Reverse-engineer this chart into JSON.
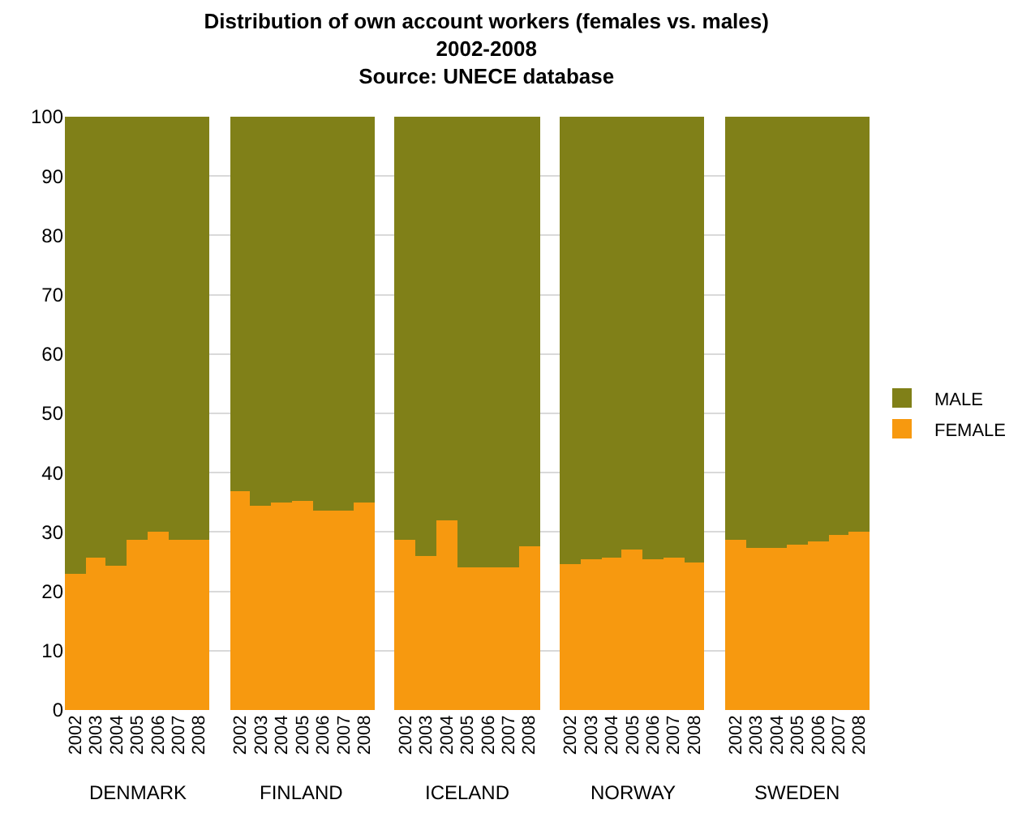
{
  "chart_data": {
    "type": "bar",
    "stacked": true,
    "title": "Distribution of own account workers (females vs. males)\n2002-2008\nSource: UNECE database",
    "categories": [
      "2002",
      "2003",
      "2004",
      "2005",
      "2006",
      "2007",
      "2008",
      null,
      "2002",
      "2003",
      "2004",
      "2005",
      "2006",
      "2007",
      "2008",
      null,
      "2002",
      "2003",
      "2004",
      "2005",
      "2006",
      "2007",
      "2008",
      null,
      "2002",
      "2003",
      "2004",
      "2005",
      "2006",
      "2007",
      "2008",
      null,
      "2002",
      "2003",
      "2004",
      "2005",
      "2006",
      "2007",
      "2008"
    ],
    "series": [
      {
        "name": "FEMALE",
        "color": "#f7990f",
        "values": [
          23.0,
          25.7,
          24.4,
          28.7,
          30.0,
          28.7,
          28.7,
          null,
          37.0,
          34.3,
          35.0,
          35.3,
          33.6,
          33.6,
          35.0,
          null,
          28.6,
          26.0,
          32.0,
          24.1,
          24.1,
          24.1,
          27.7,
          null,
          24.7,
          25.4,
          25.7,
          27.0,
          25.4,
          25.7,
          25.0,
          null,
          28.6,
          27.4,
          27.4,
          27.9,
          28.3,
          29.4,
          30.0
        ]
      },
      {
        "name": "MALE",
        "color": "#808018",
        "values": [
          77.0,
          74.3,
          75.6,
          71.3,
          70.0,
          71.3,
          71.3,
          null,
          63.0,
          65.7,
          65.0,
          64.7,
          66.4,
          66.4,
          65.0,
          null,
          71.4,
          74.0,
          68.0,
          75.9,
          75.9,
          75.9,
          72.3,
          null,
          75.3,
          74.6,
          74.3,
          73.0,
          74.6,
          74.3,
          75.0,
          null,
          71.4,
          72.6,
          72.6,
          72.1,
          71.7,
          70.6,
          70.0
        ]
      }
    ],
    "annotations": [
      "DENMARK",
      "FINLAND",
      "ICELAND",
      "NORWAY",
      "SWEDEN"
    ],
    "ylim": [
      0,
      100
    ],
    "yticks": [
      0,
      10,
      20,
      30,
      40,
      50,
      60,
      70,
      80,
      90,
      100
    ],
    "grid": "y",
    "legend": "right"
  }
}
